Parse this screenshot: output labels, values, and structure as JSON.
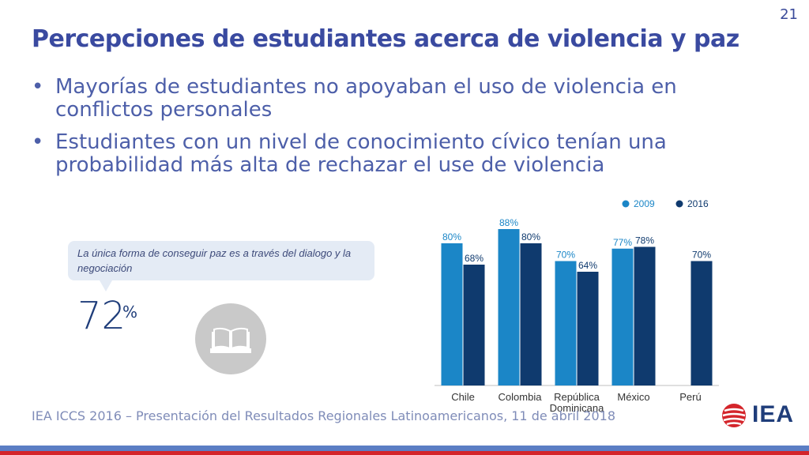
{
  "slide": {
    "page_number": "21",
    "title": "Percepciones de estudiantes acerca de violencia y paz",
    "bullets": [
      "Mayorías de estudiantes no apoyaban el uso de violencia en conflictos personales",
      "Estudiantes con un nivel de conocimiento cívico tenían una probabilidad más alta de rechazar el use de violencia"
    ],
    "bullet_marker": "•"
  },
  "quote": {
    "text": "La única forma de conseguir paz es a través del dialogo y la negociación",
    "stat_value": "72",
    "stat_unit": "%",
    "icon": "book-icon"
  },
  "footer": {
    "text": "IEA ICCS 2016 – Presentación del Resultados Regionales Latinoamericanos, 11 de abril 2018",
    "logo_text": "IEA"
  },
  "colors": {
    "title": "#3a4aa0",
    "series_2009": "#1b86c7",
    "series_2016": "#0f3a6e",
    "band_blue": "#5b7ec4",
    "band_red": "#d4252b"
  },
  "chart_data": {
    "type": "bar",
    "categories": [
      "Chile",
      "Colombia",
      "República Dominicana",
      "México",
      "Perú"
    ],
    "category_label_lines": [
      [
        "Chile"
      ],
      [
        "Colombia"
      ],
      [
        "República",
        "Dominicana"
      ],
      [
        "México"
      ],
      [
        "Perú"
      ]
    ],
    "series": [
      {
        "name": "2009",
        "values": [
          80,
          88,
          70,
          77,
          null
        ],
        "labels": [
          "80%",
          "88%",
          "70%",
          "77%",
          null
        ]
      },
      {
        "name": "2016",
        "values": [
          68,
          80,
          64,
          78,
          70
        ],
        "labels": [
          "68%",
          "80%",
          "64%",
          "78%",
          "70%"
        ]
      }
    ],
    "ylim": [
      0,
      100
    ],
    "grid": false,
    "legend_position": "top-right",
    "xlabel": "",
    "ylabel": "",
    "title": ""
  }
}
